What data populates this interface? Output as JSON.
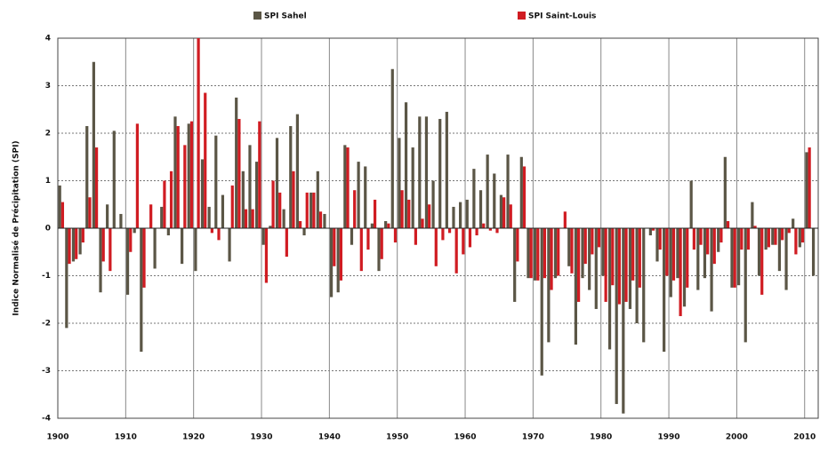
{
  "chart_data": {
    "type": "bar",
    "y_label": "Indice Normalisé de Précipitation (SPI)",
    "x": [
      1900,
      1901,
      1902,
      1903,
      1904,
      1905,
      1906,
      1907,
      1908,
      1909,
      1910,
      1911,
      1912,
      1913,
      1914,
      1915,
      1916,
      1917,
      1918,
      1919,
      1920,
      1921,
      1922,
      1923,
      1924,
      1925,
      1926,
      1927,
      1928,
      1929,
      1930,
      1931,
      1932,
      1933,
      1934,
      1935,
      1936,
      1937,
      1938,
      1939,
      1940,
      1941,
      1942,
      1943,
      1944,
      1945,
      1946,
      1947,
      1948,
      1949,
      1950,
      1951,
      1952,
      1953,
      1954,
      1955,
      1956,
      1957,
      1958,
      1959,
      1960,
      1961,
      1962,
      1963,
      1964,
      1965,
      1966,
      1967,
      1968,
      1969,
      1970,
      1971,
      1972,
      1973,
      1974,
      1975,
      1976,
      1977,
      1978,
      1979,
      1980,
      1981,
      1982,
      1983,
      1984,
      1985,
      1986,
      1987,
      1988,
      1989,
      1990,
      1991,
      1992,
      1993,
      1994,
      1995,
      1996,
      1997,
      1998,
      1999,
      2000,
      2001,
      2002,
      2003,
      2004,
      2005,
      2006,
      2007,
      2008,
      2009,
      2010,
      2011
    ],
    "series": [
      {
        "name": "SPI Sahel",
        "color": "#5b5646",
        "values": [
          0.9,
          -2.1,
          -0.7,
          -0.55,
          2.15,
          3.5,
          -1.35,
          0.5,
          2.05,
          0.3,
          -1.4,
          -0.1,
          -2.6,
          0,
          -0.85,
          0.45,
          -0.15,
          2.35,
          -0.75,
          2.2,
          -0.9,
          1.45,
          0.45,
          1.95,
          0.7,
          -0.7,
          2.75,
          1.2,
          1.75,
          1.4,
          -0.35,
          0.05,
          1.9,
          0.4,
          2.15,
          2.4,
          -0.15,
          0.75,
          1.2,
          0.3,
          -1.45,
          -1.35,
          1.75,
          -0.35,
          1.4,
          1.3,
          0.1,
          -0.9,
          0.15,
          3.35,
          1.9,
          2.65,
          1.7,
          2.35,
          2.35,
          1.0,
          2.3,
          2.45,
          0.45,
          0.55,
          0.6,
          1.25,
          0.8,
          1.55,
          1.15,
          0.7,
          1.55,
          -1.55,
          1.5,
          -1.05,
          -1.1,
          -3.1,
          -2.4,
          -1.05,
          0,
          -0.8,
          -2.45,
          -1.05,
          -1.3,
          -1.7,
          -1.0,
          -2.55,
          -3.7,
          -3.9,
          -1.7,
          -2.0,
          -2.4,
          -0.15,
          -0.7,
          -2.6,
          -1.45,
          -1.05,
          -1.65,
          1.0,
          -1.3,
          -1.05,
          -1.75,
          -0.5,
          1.5,
          -1.25,
          -1.2,
          -2.4,
          0.55,
          -1.0,
          -0.45,
          -0.35,
          -0.9,
          -1.3,
          0.2,
          -0.4,
          1.6,
          -1.0
        ]
      },
      {
        "name": "SPI Saint-Louis",
        "color": "#d01c22",
        "values": [
          0.55,
          -0.75,
          -0.65,
          -0.3,
          0.65,
          1.7,
          -0.7,
          -0.9,
          0,
          0,
          -0.5,
          2.2,
          -1.25,
          0.5,
          0,
          1.0,
          1.2,
          2.15,
          1.75,
          2.25,
          4.0,
          2.85,
          -0.1,
          -0.25,
          0,
          0.9,
          2.3,
          0.4,
          0.4,
          2.25,
          -1.15,
          1.0,
          0.75,
          -0.6,
          1.2,
          0.15,
          0.75,
          0.75,
          0.35,
          0,
          -0.8,
          -1.1,
          1.7,
          0.8,
          -0.9,
          -0.45,
          0.6,
          -0.65,
          0.1,
          -0.3,
          0.8,
          0.6,
          -0.35,
          0.2,
          0.5,
          -0.8,
          -0.25,
          -0.1,
          -0.95,
          -0.55,
          -0.4,
          -0.15,
          0.1,
          -0.05,
          -0.1,
          0.65,
          0.5,
          -0.7,
          1.3,
          -1.05,
          -1.1,
          -1.05,
          -1.3,
          -1.0,
          0.35,
          -0.95,
          -1.55,
          -0.75,
          -0.55,
          -0.4,
          -1.55,
          -1.2,
          -1.6,
          -1.55,
          -1.1,
          -1.25,
          0,
          -0.05,
          -0.45,
          -1.0,
          -1.1,
          -1.85,
          -1.25,
          -0.45,
          -0.35,
          -0.55,
          -0.75,
          -0.3,
          0.15,
          -1.25,
          -0.45,
          -0.45,
          0.05,
          -1.4,
          -0.4,
          -0.35,
          -0.25,
          -0.1,
          -0.55,
          -0.3,
          1.7,
          null
        ]
      }
    ],
    "xlim": [
      1900,
      2012
    ],
    "xticks": [
      1900,
      1910,
      1920,
      1930,
      1940,
      1950,
      1960,
      1970,
      1980,
      1990,
      2000,
      2010
    ],
    "ylim": [
      -4,
      4
    ],
    "yticks": [
      -4,
      -3,
      -2,
      -1,
      0,
      1,
      2,
      3,
      4
    ],
    "grid": true,
    "legend": "top"
  }
}
